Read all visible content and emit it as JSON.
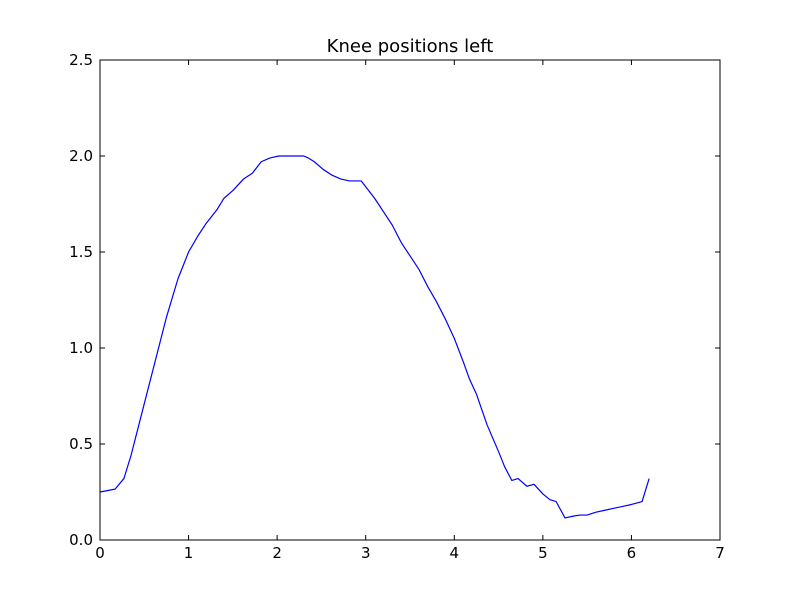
{
  "chart_data": {
    "type": "line",
    "title": "Knee positions left",
    "xlabel": "",
    "ylabel": "",
    "xlim": [
      0,
      7
    ],
    "ylim": [
      0.0,
      2.5
    ],
    "x_ticks": [
      0,
      1,
      2,
      3,
      4,
      5,
      6,
      7
    ],
    "x_tick_labels": [
      "0",
      "1",
      "2",
      "3",
      "4",
      "5",
      "6",
      "7"
    ],
    "y_ticks": [
      0.0,
      0.5,
      1.0,
      1.5,
      2.0,
      2.5
    ],
    "y_tick_labels": [
      "0.0",
      "0.5",
      "1.0",
      "1.5",
      "2.0",
      "2.5"
    ],
    "grid": false,
    "legend": "none",
    "line_color": "#0000ff",
    "series": [
      {
        "x": [
          0.0,
          0.17,
          0.27,
          0.35,
          0.45,
          0.55,
          0.65,
          0.75,
          0.88,
          1.0,
          1.1,
          1.2,
          1.32,
          1.4,
          1.5,
          1.62,
          1.72,
          1.82,
          1.92,
          2.02,
          2.12,
          2.22,
          2.3,
          2.35,
          2.42,
          2.52,
          2.62,
          2.72,
          2.82,
          2.95,
          3.0,
          3.1,
          3.2,
          3.3,
          3.4,
          3.5,
          3.6,
          3.7,
          3.8,
          3.9,
          4.0,
          4.1,
          4.17,
          4.25,
          4.37,
          4.5,
          4.57,
          4.65,
          4.72,
          4.82,
          4.9,
          5.0,
          5.08,
          5.15,
          5.25,
          5.35,
          5.42,
          5.5,
          5.6,
          5.7,
          5.8,
          5.9,
          6.0,
          6.12,
          6.2
        ],
        "y": [
          0.25,
          0.265,
          0.32,
          0.44,
          0.62,
          0.8,
          0.98,
          1.16,
          1.36,
          1.5,
          1.58,
          1.65,
          1.72,
          1.78,
          1.82,
          1.88,
          1.91,
          1.97,
          1.99,
          2.0,
          2.0,
          2.0,
          2.0,
          1.99,
          1.97,
          1.93,
          1.9,
          1.88,
          1.87,
          1.87,
          1.84,
          1.78,
          1.71,
          1.64,
          1.55,
          1.48,
          1.41,
          1.32,
          1.24,
          1.15,
          1.05,
          0.93,
          0.84,
          0.76,
          0.6,
          0.46,
          0.38,
          0.31,
          0.32,
          0.28,
          0.29,
          0.24,
          0.21,
          0.2,
          0.115,
          0.125,
          0.13,
          0.13,
          0.145,
          0.155,
          0.165,
          0.175,
          0.185,
          0.2,
          0.32
        ]
      }
    ]
  }
}
